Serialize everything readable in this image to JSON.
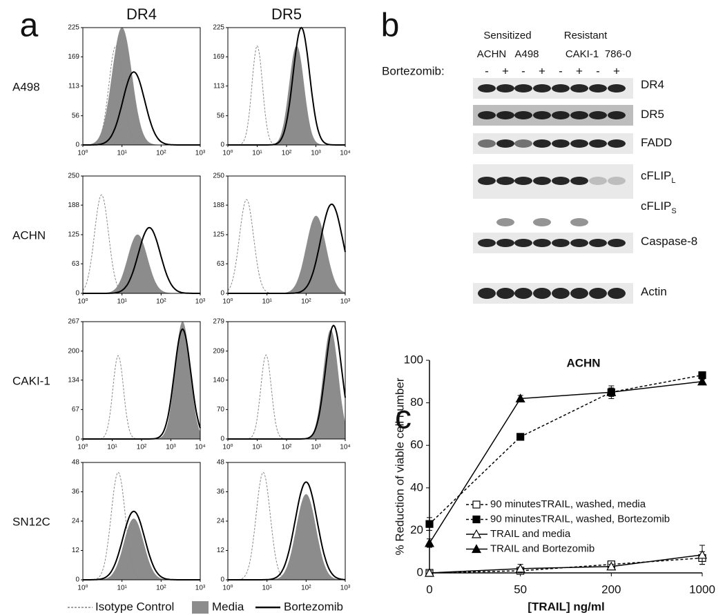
{
  "panel_labels": [
    "a",
    "b",
    "c"
  ],
  "flow": {
    "columns": [
      "DR4",
      "DR5"
    ],
    "legend": [
      "Isotype Control",
      "Media",
      "Bortezomib"
    ],
    "rows": [
      {
        "label": "A498",
        "panels": [
          {
            "ylim": [
              0,
              225
            ],
            "yticks": [
              0,
              56,
              113,
              169,
              225
            ],
            "xlim": [
              1,
              1000
            ],
            "xticks": [
              {
                "value": 1,
                "label": "10⁰"
              },
              {
                "value": 10,
                "label": "10¹"
              },
              {
                "value": 100,
                "label": "10²"
              },
              {
                "value": 1000,
                "label": "10³"
              }
            ],
            "isotype": {
              "peak": 7,
              "height": 190
            },
            "media": {
              "peak": 10,
              "height": 225
            },
            "bortezomib": {
              "peak": 20,
              "height": 140
            }
          },
          {
            "ylim": [
              0,
              225
            ],
            "yticks": [
              0,
              56,
              113,
              169,
              225
            ],
            "xlim": [
              1,
              10000
            ],
            "xticks": [
              {
                "value": 1,
                "label": "10⁰"
              },
              {
                "value": 10,
                "label": "10¹"
              },
              {
                "value": 100,
                "label": "10²"
              },
              {
                "value": 1000,
                "label": "10³"
              },
              {
                "value": 10000,
                "label": "10⁴"
              }
            ],
            "isotype": {
              "peak": 10,
              "height": 190
            },
            "media": {
              "peak": 220,
              "height": 190
            },
            "bortezomib": {
              "peak": 320,
              "height": 225
            }
          }
        ]
      },
      {
        "label": "ACHN",
        "panels": [
          {
            "ylim": [
              0,
              250
            ],
            "yticks": [
              0,
              63,
              125,
              188,
              250
            ],
            "xlim": [
              1,
              1000
            ],
            "xticks": [
              {
                "value": 1,
                "label": "10⁰"
              },
              {
                "value": 10,
                "label": "10¹"
              },
              {
                "value": 100,
                "label": "10²"
              },
              {
                "value": 1000,
                "label": "10³"
              }
            ],
            "isotype": {
              "peak": 3,
              "height": 210
            },
            "media": {
              "peak": 25,
              "height": 125
            },
            "bortezomib": {
              "peak": 50,
              "height": 140
            }
          },
          {
            "ylim": [
              0,
              250
            ],
            "yticks": [
              0,
              63,
              125,
              188,
              250
            ],
            "xlim": [
              1,
              1000
            ],
            "xticks": [
              {
                "value": 1,
                "label": "10⁰"
              },
              {
                "value": 10,
                "label": "10¹"
              },
              {
                "value": 100,
                "label": "10²"
              },
              {
                "value": 1000,
                "label": "10³"
              }
            ],
            "isotype": {
              "peak": 3,
              "height": 200
            },
            "media": {
              "peak": 180,
              "height": 165
            },
            "bortezomib": {
              "peak": 450,
              "height": 190
            }
          }
        ]
      },
      {
        "label": "CAKI-1",
        "panels": [
          {
            "ylim": [
              0,
              267
            ],
            "yticks": [
              0,
              67,
              134,
              200,
              267
            ],
            "xlim": [
              1,
              10000
            ],
            "xticks": [
              {
                "value": 1,
                "label": "10⁰"
              },
              {
                "value": 10,
                "label": "10¹"
              },
              {
                "value": 100,
                "label": "10²"
              },
              {
                "value": 1000,
                "label": "10³"
              },
              {
                "value": 10000,
                "label": "10⁴"
              }
            ],
            "isotype": {
              "peak": 16,
              "height": 190
            },
            "media": {
              "peak": 2500,
              "height": 267
            },
            "bortezomib": {
              "peak": 2500,
              "height": 250
            }
          },
          {
            "ylim": [
              0,
              279
            ],
            "yticks": [
              0,
              70,
              140,
              209,
              279
            ],
            "xlim": [
              1,
              10000
            ],
            "xticks": [
              {
                "value": 1,
                "label": "10⁰"
              },
              {
                "value": 10,
                "label": "10¹"
              },
              {
                "value": 100,
                "label": "10²"
              },
              {
                "value": 1000,
                "label": "10³"
              },
              {
                "value": 10000,
                "label": "10⁴"
              }
            ],
            "isotype": {
              "peak": 20,
              "height": 200
            },
            "media": {
              "peak": 3200,
              "height": 260
            },
            "bortezomib": {
              "peak": 4000,
              "height": 270
            }
          }
        ]
      },
      {
        "label": "SN12C",
        "panels": [
          {
            "ylim": [
              0,
              48
            ],
            "yticks": [
              0,
              12,
              24,
              36,
              48
            ],
            "xlim": [
              1,
              1000
            ],
            "xticks": [
              {
                "value": 1,
                "label": "10⁰"
              },
              {
                "value": 10,
                "label": "10¹"
              },
              {
                "value": 100,
                "label": "10²"
              },
              {
                "value": 1000,
                "label": "10³"
              }
            ],
            "isotype": {
              "peak": 8,
              "height": 44
            },
            "media": {
              "peak": 20,
              "height": 25
            },
            "bortezomib": {
              "peak": 20,
              "height": 28
            }
          },
          {
            "ylim": [
              0,
              48
            ],
            "yticks": [
              0,
              12,
              24,
              36,
              48
            ],
            "xlim": [
              1,
              1000
            ],
            "xticks": [
              {
                "value": 1,
                "label": "10⁰"
              },
              {
                "value": 10,
                "label": "10¹"
              },
              {
                "value": 100,
                "label": "10²"
              },
              {
                "value": 1000,
                "label": "10³"
              }
            ],
            "isotype": {
              "peak": 8,
              "height": 44
            },
            "media": {
              "peak": 100,
              "height": 35
            },
            "bortezomib": {
              "peak": 100,
              "height": 40
            }
          }
        ]
      }
    ]
  },
  "blot": {
    "groups": [
      "Sensitized",
      "Resistant"
    ],
    "cell_lines": [
      "ACHN",
      "A498",
      "CAKI-1",
      "786-0"
    ],
    "treatment_label": "Bortezomib:",
    "treatments": [
      "-",
      "+",
      "-",
      "+",
      "-",
      "+",
      "-",
      "+"
    ],
    "rows": [
      {
        "label": "DR4"
      },
      {
        "label": "DR5"
      },
      {
        "label": "FADD"
      },
      {
        "label": "cFLIP",
        "sub": "L"
      },
      {
        "label": "cFLIP",
        "sub": "S"
      },
      {
        "label": "Caspase-8"
      },
      {
        "label": "Actin"
      }
    ]
  },
  "chart_data": {
    "type": "line",
    "title": "ACHN",
    "y_label": "% Reduction of viable cell number",
    "x_label": "[TRAIL] ng/ml",
    "categories": [
      "0",
      "50",
      "200",
      "1000"
    ],
    "ylim": [
      0,
      100
    ],
    "yticks": [
      0,
      20,
      40,
      60,
      80,
      100
    ],
    "series": [
      {
        "name": "90 minutesTRAIL, washed, media",
        "color": "#000000",
        "marker": "square",
        "filled": false,
        "dashed": true,
        "values": [
          0,
          1,
          4,
          7
        ],
        "errors": [
          1,
          1,
          1.5,
          3
        ]
      },
      {
        "name": "90 minutesTRAIL, washed, Bortezomib",
        "color": "#000000",
        "marker": "square",
        "filled": true,
        "dashed": true,
        "values": [
          23,
          64,
          85,
          93
        ],
        "errors": [
          3,
          1,
          2,
          1
        ]
      },
      {
        "name": "TRAIL and media",
        "color": "#000000",
        "marker": "triangle",
        "filled": false,
        "dashed": false,
        "values": [
          0,
          2,
          3,
          8.5
        ],
        "errors": [
          1,
          2,
          1,
          4.5
        ]
      },
      {
        "name": "TRAIL and Bortezomib",
        "color": "#000000",
        "marker": "triangle",
        "filled": true,
        "dashed": false,
        "values": [
          14,
          82,
          85,
          90
        ],
        "errors": [
          2,
          1.5,
          3,
          1
        ]
      }
    ]
  }
}
